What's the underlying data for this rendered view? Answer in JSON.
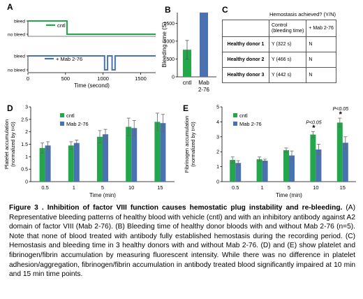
{
  "panels": [
    "A",
    "B",
    "C",
    "D",
    "E"
  ],
  "panelA": {
    "traces": [
      {
        "name": "cntl",
        "color": "#22a84a",
        "events": [
          [
            0,
            1
          ],
          [
            520,
            1
          ],
          [
            520,
            0
          ],
          [
            1700,
            0
          ]
        ]
      },
      {
        "name": "+ Mab 2-76",
        "color": "#4a72b0",
        "events": [
          [
            0,
            1
          ],
          [
            1020,
            1
          ],
          [
            1020,
            0
          ],
          [
            1060,
            0
          ],
          [
            1060,
            1
          ],
          [
            1120,
            1
          ],
          [
            1120,
            0
          ],
          [
            1160,
            0
          ],
          [
            1160,
            1
          ],
          [
            1700,
            1
          ]
        ]
      }
    ],
    "level_high": "bleed",
    "level_low": "no bleed",
    "ticks": [
      "0",
      "500",
      "1000",
      "1500"
    ],
    "tick_values": [
      0,
      500,
      1000,
      1500
    ],
    "xmax": 1700,
    "xlabel": "Time (second)"
  },
  "panelB": {
    "chart_data": {
      "type": "bar",
      "categories": [
        "cntl",
        "Mab\n2-76"
      ],
      "category_lines": [
        [
          "cntl"
        ],
        [
          "Mab",
          "2-76"
        ]
      ],
      "values": [
        760,
        1800
      ],
      "errors": [
        260,
        0
      ],
      "colors": [
        "#22a84a",
        "#4a72b0"
      ],
      "ylabel": "Bleeding time (S)",
      "ylim": [
        0,
        1800
      ],
      "yticks": [
        0,
        500,
        1000,
        1500
      ]
    }
  },
  "panelC": {
    "title": "Hemostasis achieved? (Y/N)",
    "headers": [
      "",
      "Control (bleeding time)",
      "+ Mab 2-76"
    ],
    "header_lines": [
      [
        "Control",
        "(bleeding time)"
      ]
    ],
    "rows": [
      {
        "donor": "Healthy donor 1",
        "control": "Y (322 s)",
        "mab": "N"
      },
      {
        "donor": "Healthy donor 2",
        "control": "Y (466 s)",
        "mab": "N"
      },
      {
        "donor": "Healthy donor 3",
        "control": "Y (442 s)",
        "mab": "N"
      }
    ]
  },
  "panelD": {
    "chart_data": {
      "type": "bar",
      "categories": [
        "0.5",
        "1",
        "5",
        "10",
        "15"
      ],
      "series": [
        {
          "name": "cntl",
          "color": "#22a84a",
          "values": [
            1.35,
            1.45,
            1.8,
            2.2,
            2.4
          ],
          "errors": [
            0.2,
            0.15,
            0.25,
            0.35,
            0.35
          ]
        },
        {
          "name": "Mab 2-76",
          "color": "#4a72b0",
          "values": [
            1.45,
            1.55,
            1.9,
            2.15,
            2.35
          ],
          "errors": [
            0.15,
            0.12,
            0.2,
            0.3,
            0.35
          ]
        }
      ],
      "ylabel": "Platelet accumulation\n(normalized by t=0)",
      "ylabel_lines": [
        "Platelet accumulation",
        "(normalized by t=0)"
      ],
      "xlabel": "Time (min)",
      "ylim": [
        0,
        3
      ],
      "yticks": [
        "0",
        "0.5",
        "1",
        "1.5",
        "2",
        "2.5",
        "3"
      ]
    }
  },
  "panelE": {
    "chart_data": {
      "type": "bar",
      "categories": [
        "0.5",
        "1",
        "5",
        "10",
        "15"
      ],
      "series": [
        {
          "name": "cntl",
          "color": "#22a84a",
          "values": [
            1.45,
            1.5,
            2.1,
            3.15,
            3.95
          ],
          "errors": [
            0.2,
            0.15,
            0.15,
            0.2,
            0.3
          ]
        },
        {
          "name": "Mab 2-76",
          "color": "#4a72b0",
          "values": [
            1.25,
            1.4,
            1.75,
            2.15,
            2.6
          ],
          "errors": [
            0.15,
            0.1,
            0.3,
            0.35,
            0.4
          ]
        }
      ],
      "ylabel": "Fibrinogen accumulation\n(normalized by t=0)",
      "ylabel_lines": [
        "Fibrinogen accumulation",
        "(normalized by t=0)"
      ],
      "xlabel": "Time (min)",
      "ylim": [
        0,
        5
      ],
      "yticks": [
        "0",
        "1",
        "2",
        "3",
        "4",
        "5"
      ],
      "annotations": [
        {
          "category": "10",
          "text": "P<0.05",
          "star": "*"
        },
        {
          "category": "15",
          "text": "P<0.05",
          "star": "*"
        }
      ]
    }
  },
  "caption": {
    "heading": "Figure 3 . Inhibition of factor VIII function causes hemostatic plug instability and re-bleeding.",
    "body": " (A) Representative bleeding patterns of healthy blood with vehicle (cntl) and with an inhibitory antibody against A2 domain of factor VIII (Mab 2-76). (B) Bleeding time of healthy donor bloods with and without Mab 2-76 (n=5). Note that none of blood treated with antibody fully established hemostasis during the recording period. (C) Hemostasis and bleeding time in 3 healthy donors with and without Mab 2-76. (D) and (E) show platelet and fibrinogen/fibrin accumulation by measuring fluorescent intensity. While there was no difference in platelet adhesion/aggregation, fibrinogen/fibrin accumulation in antibody treated blood significantly impaired at 10 min and 15 min time points."
  }
}
